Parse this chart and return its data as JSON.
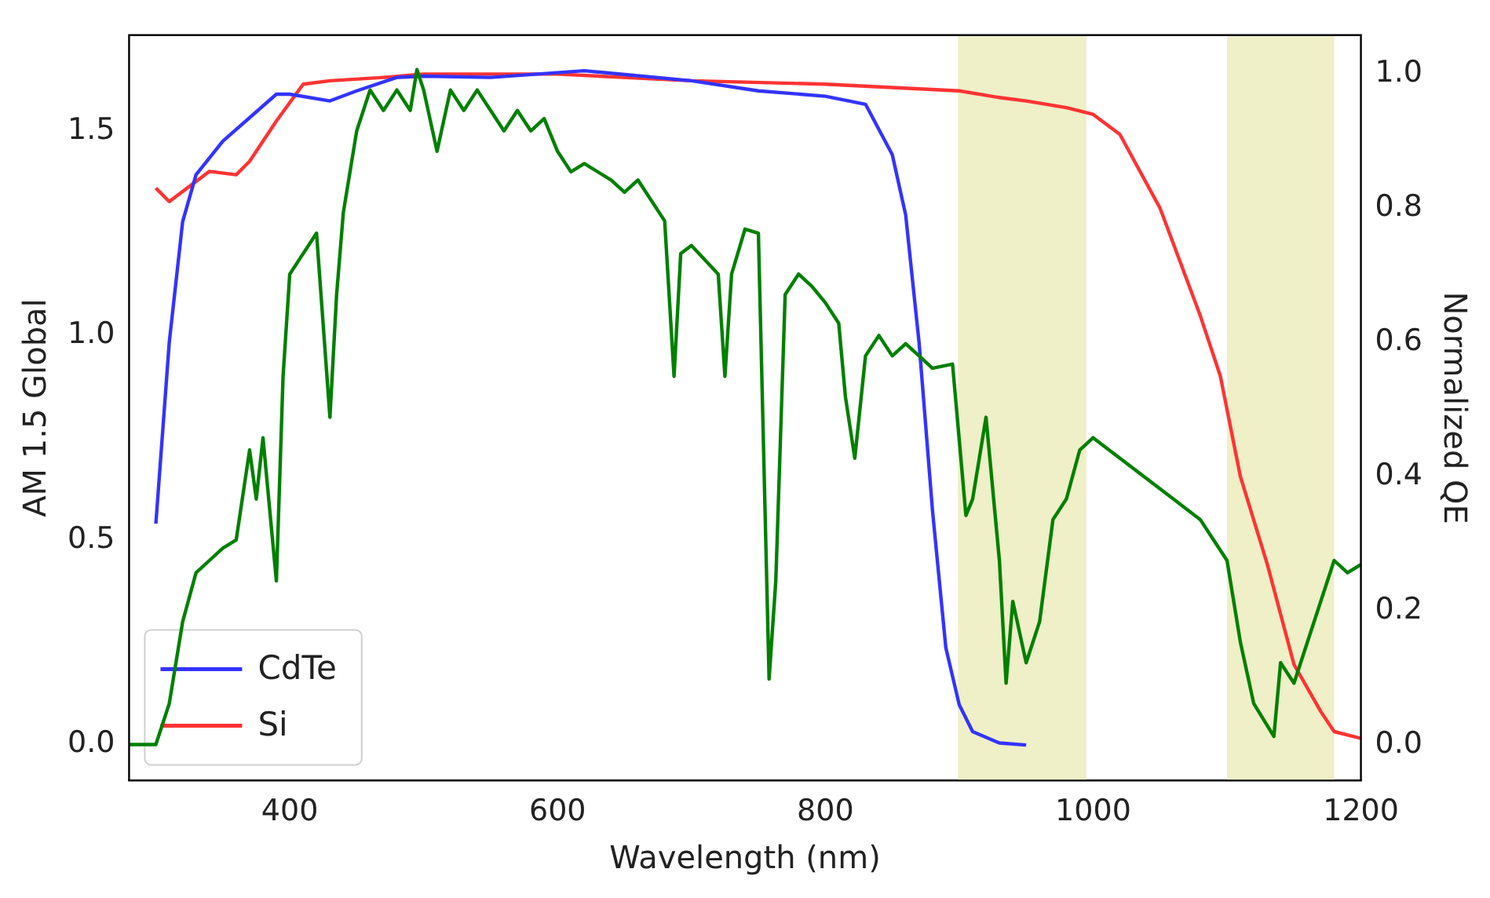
{
  "chart_data": {
    "type": "line",
    "xlabel": "Wavelength (nm)",
    "ylabel": "AM 1.5 Global",
    "y2label": "Normalized QE",
    "xlim": [
      280,
      1200
    ],
    "xticks": [
      400,
      600,
      800,
      1000,
      1200
    ],
    "ylim": [
      -0.088,
      1.734
    ],
    "yticks": [
      {
        "value": 0,
        "label": "0.0"
      },
      {
        "value": 0.5,
        "label": "0.5"
      },
      {
        "value": 1,
        "label": "1.0"
      },
      {
        "value": 1.5,
        "label": "1.5"
      }
    ],
    "y2lim": [
      -0.053,
      1.058
    ],
    "y2ticks": [
      {
        "value": 0,
        "label": "0.0"
      },
      {
        "value": 0.2,
        "label": "0.2"
      },
      {
        "value": 0.4,
        "label": "0.4"
      },
      {
        "value": 0.6,
        "label": "0.6"
      },
      {
        "value": 0.8,
        "label": "0.8"
      },
      {
        "value": 1,
        "label": "1.0"
      }
    ],
    "grid": false,
    "legend": "bottom left",
    "line_style": "solid",
    "marker": "none",
    "bands": [
      {
        "axis": "x",
        "from": 899,
        "to": 995,
        "color": "#efefc8"
      },
      {
        "axis": "x",
        "from": 1100,
        "to": 1180,
        "color": "#efefc8"
      }
    ],
    "series": [
      {
        "color": "#008000",
        "x": [
          280,
          300,
          310,
          320,
          330,
          340,
          350,
          360,
          370,
          375,
          380,
          390,
          395,
          400,
          410,
          420,
          430,
          435,
          440,
          450,
          460,
          470,
          480,
          490,
          495,
          500,
          510,
          520,
          530,
          540,
          550,
          560,
          570,
          580,
          590,
          600,
          610,
          620,
          640,
          650,
          660,
          680,
          687,
          692,
          700,
          720,
          725,
          730,
          740,
          750,
          758,
          763,
          770,
          780,
          790,
          800,
          810,
          815,
          822,
          830,
          840,
          850,
          860,
          870,
          880,
          895,
          905,
          910,
          920,
          930,
          935,
          940,
          950,
          960,
          970,
          980,
          990,
          1000,
          1020,
          1040,
          1060,
          1080,
          1090,
          1100,
          1110,
          1120,
          1135,
          1140,
          1150,
          1160,
          1170,
          1180,
          1190,
          1200
        ],
        "values": [
          0,
          0,
          0.1,
          0.3,
          0.42,
          0.45,
          0.48,
          0.5,
          0.72,
          0.6,
          0.75,
          0.4,
          0.9,
          1.15,
          1.2,
          1.25,
          0.8,
          1.1,
          1.3,
          1.5,
          1.6,
          1.55,
          1.6,
          1.55,
          1.65,
          1.6,
          1.45,
          1.6,
          1.55,
          1.6,
          1.55,
          1.5,
          1.55,
          1.5,
          1.53,
          1.45,
          1.4,
          1.42,
          1.38,
          1.35,
          1.38,
          1.28,
          0.9,
          1.2,
          1.22,
          1.15,
          0.9,
          1.15,
          1.26,
          1.25,
          0.16,
          0.4,
          1.1,
          1.15,
          1.12,
          1.08,
          1.03,
          0.85,
          0.7,
          0.95,
          1.0,
          0.95,
          0.98,
          0.95,
          0.92,
          0.93,
          0.56,
          0.6,
          0.8,
          0.45,
          0.15,
          0.35,
          0.2,
          0.3,
          0.55,
          0.6,
          0.72,
          0.75,
          0.7,
          0.65,
          0.6,
          0.55,
          0.5,
          0.45,
          0.25,
          0.1,
          0.02,
          0.2,
          0.15,
          0.25,
          0.35,
          0.45,
          0.42,
          0.44
        ]
      },
      {
        "name": "CdTe",
        "color": "#3333ff",
        "axis": "y2",
        "x": [
          300,
          310,
          320,
          330,
          350,
          390,
          400,
          430,
          450,
          480,
          500,
          550,
          620,
          700,
          750,
          800,
          830,
          850,
          860,
          870,
          880,
          890,
          900,
          910,
          930,
          950
        ],
        "values": [
          0.33,
          0.6,
          0.78,
          0.85,
          0.9,
          0.97,
          0.97,
          0.96,
          0.975,
          0.995,
          0.997,
          0.995,
          1.005,
          0.99,
          0.975,
          0.967,
          0.955,
          0.88,
          0.79,
          0.6,
          0.35,
          0.145,
          0.06,
          0.02,
          0.003,
          0.0
        ]
      },
      {
        "name": "Si",
        "color": "#ff3333",
        "axis": "y2",
        "x": [
          300,
          310,
          330,
          340,
          360,
          370,
          390,
          410,
          430,
          470,
          500,
          600,
          700,
          800,
          850,
          900,
          930,
          950,
          980,
          1000,
          1020,
          1050,
          1080,
          1095,
          1110,
          1130,
          1150,
          1170,
          1180,
          1200
        ],
        "values": [
          0.83,
          0.81,
          0.84,
          0.855,
          0.85,
          0.87,
          0.93,
          0.985,
          0.99,
          0.995,
          1.0,
          1.0,
          0.99,
          0.985,
          0.98,
          0.975,
          0.965,
          0.96,
          0.95,
          0.94,
          0.91,
          0.8,
          0.64,
          0.55,
          0.4,
          0.27,
          0.12,
          0.05,
          0.02,
          0.01
        ]
      }
    ]
  }
}
